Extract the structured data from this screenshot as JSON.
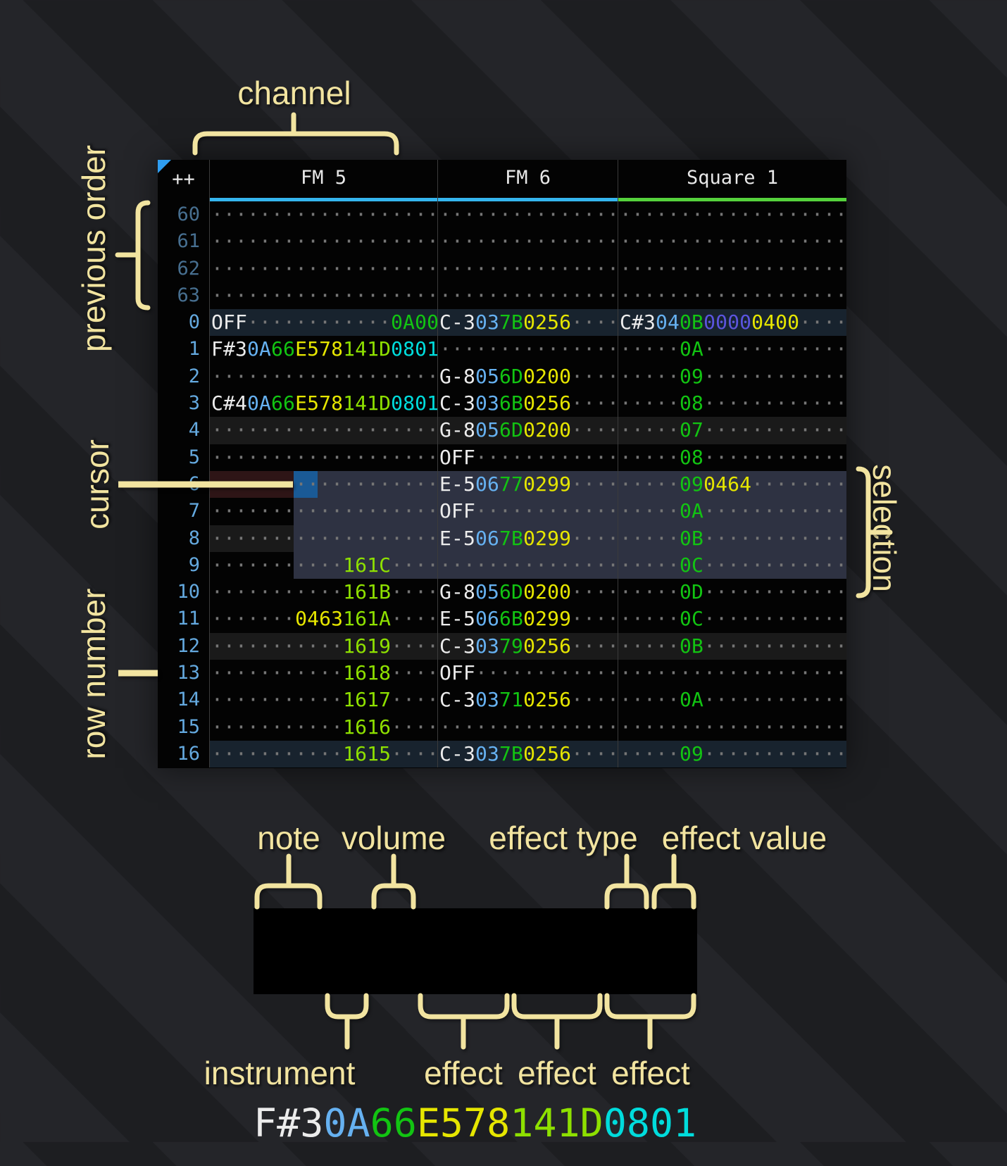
{
  "annotations": {
    "channel": "channel",
    "previous_order": "previous order",
    "cursor": "cursor",
    "row_number": "row number",
    "selection": "selection",
    "note": "note",
    "volume": "volume",
    "effect_type": "effect type",
    "effect_value": "effect value",
    "instrument": "instrument",
    "effect1": "effect",
    "effect2": "effect",
    "effect3": "effect"
  },
  "tracker": {
    "corner": "++",
    "channels": [
      {
        "name": "FM 5",
        "underline": "#35b5ee",
        "fields": [
          3,
          2,
          2,
          4,
          4,
          4
        ]
      },
      {
        "name": "FM 6",
        "underline": "#35b5ee",
        "fields": [
          3,
          2,
          2,
          4,
          4
        ]
      },
      {
        "name": "Square 1",
        "underline": "#55d23c",
        "fields": [
          3,
          2,
          2,
          4,
          4,
          4
        ]
      }
    ],
    "rows": [
      {
        "n": "60",
        "prev": true,
        "fm5": [
          null,
          null,
          null,
          null,
          null,
          null
        ],
        "fm6": [
          null,
          null,
          null,
          null,
          null
        ],
        "sq1": [
          null,
          null,
          null,
          null,
          null,
          null
        ]
      },
      {
        "n": "61",
        "prev": true,
        "fm5": [
          null,
          null,
          null,
          null,
          null,
          null
        ],
        "fm6": [
          null,
          null,
          null,
          null,
          null
        ],
        "sq1": [
          null,
          null,
          null,
          null,
          null,
          null
        ]
      },
      {
        "n": "62",
        "prev": true,
        "fm5": [
          null,
          null,
          null,
          null,
          null,
          null
        ],
        "fm6": [
          null,
          null,
          null,
          null,
          null
        ],
        "sq1": [
          null,
          null,
          null,
          null,
          null,
          null
        ]
      },
      {
        "n": "63",
        "prev": true,
        "fm5": [
          null,
          null,
          null,
          null,
          null,
          null
        ],
        "fm6": [
          null,
          null,
          null,
          null,
          null
        ],
        "sq1": [
          null,
          null,
          null,
          null,
          null,
          null
        ]
      },
      {
        "n": "0",
        "bg": "hi16",
        "fm5": [
          [
            "OFF",
            "note"
          ],
          null,
          null,
          null,
          null,
          [
            "0A00",
            "vol"
          ]
        ],
        "fm6": [
          [
            "C-3",
            "note"
          ],
          [
            "03",
            "ins"
          ],
          [
            "7B",
            "vol"
          ],
          [
            "0256",
            "fxy"
          ],
          null
        ],
        "sq1": [
          [
            "C#3",
            "note"
          ],
          [
            "04",
            "ins"
          ],
          [
            "0B",
            "vol"
          ],
          [
            "0000",
            "fxp"
          ],
          [
            "0400",
            "fxy"
          ],
          null
        ]
      },
      {
        "n": "1",
        "fm5": [
          [
            "F#3",
            "note"
          ],
          [
            "0A",
            "ins"
          ],
          [
            "66",
            "vol"
          ],
          [
            "E578",
            "fxy"
          ],
          [
            "141D",
            "fxl"
          ],
          [
            "0801",
            "fxc"
          ]
        ],
        "fm6": [
          null,
          null,
          null,
          null,
          null
        ],
        "sq1": [
          null,
          null,
          [
            "0A",
            "vol"
          ],
          null,
          null,
          null
        ]
      },
      {
        "n": "2",
        "fm5": [
          null,
          null,
          null,
          null,
          null,
          null
        ],
        "fm6": [
          [
            "G-8",
            "note"
          ],
          [
            "05",
            "ins"
          ],
          [
            "6D",
            "vol"
          ],
          [
            "0200",
            "fxy"
          ],
          null
        ],
        "sq1": [
          null,
          null,
          [
            "09",
            "vol"
          ],
          null,
          null,
          null
        ]
      },
      {
        "n": "3",
        "fm5": [
          [
            "C#4",
            "note"
          ],
          [
            "0A",
            "ins"
          ],
          [
            "66",
            "vol"
          ],
          [
            "E578",
            "fxy"
          ],
          [
            "141D",
            "fxl"
          ],
          [
            "0801",
            "fxc"
          ]
        ],
        "fm6": [
          [
            "C-3",
            "note"
          ],
          [
            "03",
            "ins"
          ],
          [
            "6B",
            "vol"
          ],
          [
            "0256",
            "fxy"
          ],
          null
        ],
        "sq1": [
          null,
          null,
          [
            "08",
            "vol"
          ],
          null,
          null,
          null
        ]
      },
      {
        "n": "4",
        "bg": "hi4",
        "fm5": [
          null,
          null,
          null,
          null,
          null,
          null
        ],
        "fm6": [
          [
            "G-8",
            "note"
          ],
          [
            "05",
            "ins"
          ],
          [
            "6D",
            "vol"
          ],
          [
            "0200",
            "fxy"
          ],
          null
        ],
        "sq1": [
          null,
          null,
          [
            "07",
            "vol"
          ],
          null,
          null,
          null
        ]
      },
      {
        "n": "5",
        "fm5": [
          null,
          null,
          null,
          null,
          null,
          null
        ],
        "fm6": [
          [
            "OFF",
            "note"
          ],
          null,
          null,
          null,
          null
        ],
        "sq1": [
          null,
          null,
          [
            "08",
            "vol"
          ],
          null,
          null,
          null
        ]
      },
      {
        "n": "6",
        "cursor": true,
        "fm5": [
          null,
          null,
          null,
          null,
          null,
          null
        ],
        "fm6": [
          [
            "E-5",
            "note"
          ],
          [
            "06",
            "ins"
          ],
          [
            "77",
            "vol"
          ],
          [
            "0299",
            "fxy"
          ],
          null
        ],
        "sq1": [
          null,
          null,
          [
            "09",
            "vol"
          ],
          [
            "0464",
            "fxy"
          ],
          null,
          null
        ]
      },
      {
        "n": "7",
        "fm5": [
          null,
          null,
          null,
          null,
          null,
          null
        ],
        "fm6": [
          [
            "OFF",
            "note"
          ],
          null,
          null,
          null,
          null
        ],
        "sq1": [
          null,
          null,
          [
            "0A",
            "vol"
          ],
          null,
          null,
          null
        ]
      },
      {
        "n": "8",
        "bg": "hi4",
        "fm5": [
          null,
          null,
          null,
          null,
          null,
          null
        ],
        "fm6": [
          [
            "E-5",
            "note"
          ],
          [
            "06",
            "ins"
          ],
          [
            "7B",
            "vol"
          ],
          [
            "0299",
            "fxy"
          ],
          null
        ],
        "sq1": [
          null,
          null,
          [
            "0B",
            "vol"
          ],
          null,
          null,
          null
        ]
      },
      {
        "n": "9",
        "fm5": [
          null,
          null,
          null,
          null,
          [
            "161C",
            "fxl"
          ],
          null
        ],
        "fm6": [
          null,
          null,
          null,
          null,
          null
        ],
        "sq1": [
          null,
          null,
          [
            "0C",
            "vol"
          ],
          null,
          null,
          null
        ]
      },
      {
        "n": "10",
        "fm5": [
          null,
          null,
          null,
          null,
          [
            "161B",
            "fxl"
          ],
          null
        ],
        "fm6": [
          [
            "G-8",
            "note"
          ],
          [
            "05",
            "ins"
          ],
          [
            "6D",
            "vol"
          ],
          [
            "0200",
            "fxy"
          ],
          null
        ],
        "sq1": [
          null,
          null,
          [
            "0D",
            "vol"
          ],
          null,
          null,
          null
        ]
      },
      {
        "n": "11",
        "fm5": [
          null,
          null,
          null,
          [
            "0463",
            "fxy"
          ],
          [
            "161A",
            "fxl"
          ],
          null
        ],
        "fm6": [
          [
            "E-5",
            "note"
          ],
          [
            "06",
            "ins"
          ],
          [
            "6B",
            "vol"
          ],
          [
            "0299",
            "fxy"
          ],
          null
        ],
        "sq1": [
          null,
          null,
          [
            "0C",
            "vol"
          ],
          null,
          null,
          null
        ]
      },
      {
        "n": "12",
        "bg": "hi4",
        "fm5": [
          null,
          null,
          null,
          null,
          [
            "1619",
            "fxl"
          ],
          null
        ],
        "fm6": [
          [
            "C-3",
            "note"
          ],
          [
            "03",
            "ins"
          ],
          [
            "79",
            "vol"
          ],
          [
            "0256",
            "fxy"
          ],
          null
        ],
        "sq1": [
          null,
          null,
          [
            "0B",
            "vol"
          ],
          null,
          null,
          null
        ]
      },
      {
        "n": "13",
        "fm5": [
          null,
          null,
          null,
          null,
          [
            "1618",
            "fxl"
          ],
          null
        ],
        "fm6": [
          [
            "OFF",
            "note"
          ],
          null,
          null,
          null,
          null
        ],
        "sq1": [
          null,
          null,
          null,
          null,
          null,
          null
        ]
      },
      {
        "n": "14",
        "fm5": [
          null,
          null,
          null,
          null,
          [
            "1617",
            "fxl"
          ],
          null
        ],
        "fm6": [
          [
            "C-3",
            "note"
          ],
          [
            "03",
            "ins"
          ],
          [
            "71",
            "vol"
          ],
          [
            "0256",
            "fxy"
          ],
          null
        ],
        "sq1": [
          null,
          null,
          [
            "0A",
            "vol"
          ],
          null,
          null,
          null
        ]
      },
      {
        "n": "15",
        "fm5": [
          null,
          null,
          null,
          null,
          [
            "1616",
            "fxl"
          ],
          null
        ],
        "fm6": [
          null,
          null,
          null,
          null,
          null
        ],
        "sq1": [
          null,
          null,
          null,
          null,
          null,
          null
        ]
      },
      {
        "n": "16",
        "bg": "hi16",
        "fm5": [
          null,
          null,
          null,
          null,
          [
            "1615",
            "fxl"
          ],
          null
        ],
        "fm6": [
          [
            "C-3",
            "note"
          ],
          [
            "03",
            "ins"
          ],
          [
            "7B",
            "vol"
          ],
          [
            "0256",
            "fxy"
          ],
          null
        ],
        "sq1": [
          null,
          null,
          [
            "09",
            "vol"
          ],
          null,
          null,
          null
        ]
      }
    ]
  },
  "breakdown": {
    "segments": [
      [
        "F#3",
        "note"
      ],
      [
        "0A",
        "ins"
      ],
      [
        "66",
        "vol"
      ],
      [
        "E578",
        "fxy"
      ],
      [
        "141D",
        "fxl"
      ],
      [
        "0801",
        "fxc"
      ]
    ]
  },
  "colors": {
    "note": "#ececec",
    "ins": "#66b1f1",
    "vol": "#12c412",
    "fxy": "#e6e600",
    "fxl": "#8ee000",
    "fxc": "#00dcdc",
    "fxp": "#5b54e0",
    "dots": "#767676",
    "rownum": "#64a9df",
    "rownum_prev": "#476f90",
    "hi4": "#1a1a1a",
    "hi16": "#18232e",
    "maroon": "#2e1516",
    "cursor": "#1a5a96",
    "selection": "#2e3242",
    "triangle": "#2e9df0",
    "header_text": "#e8e8e8",
    "cream": "#f2e4a0"
  }
}
